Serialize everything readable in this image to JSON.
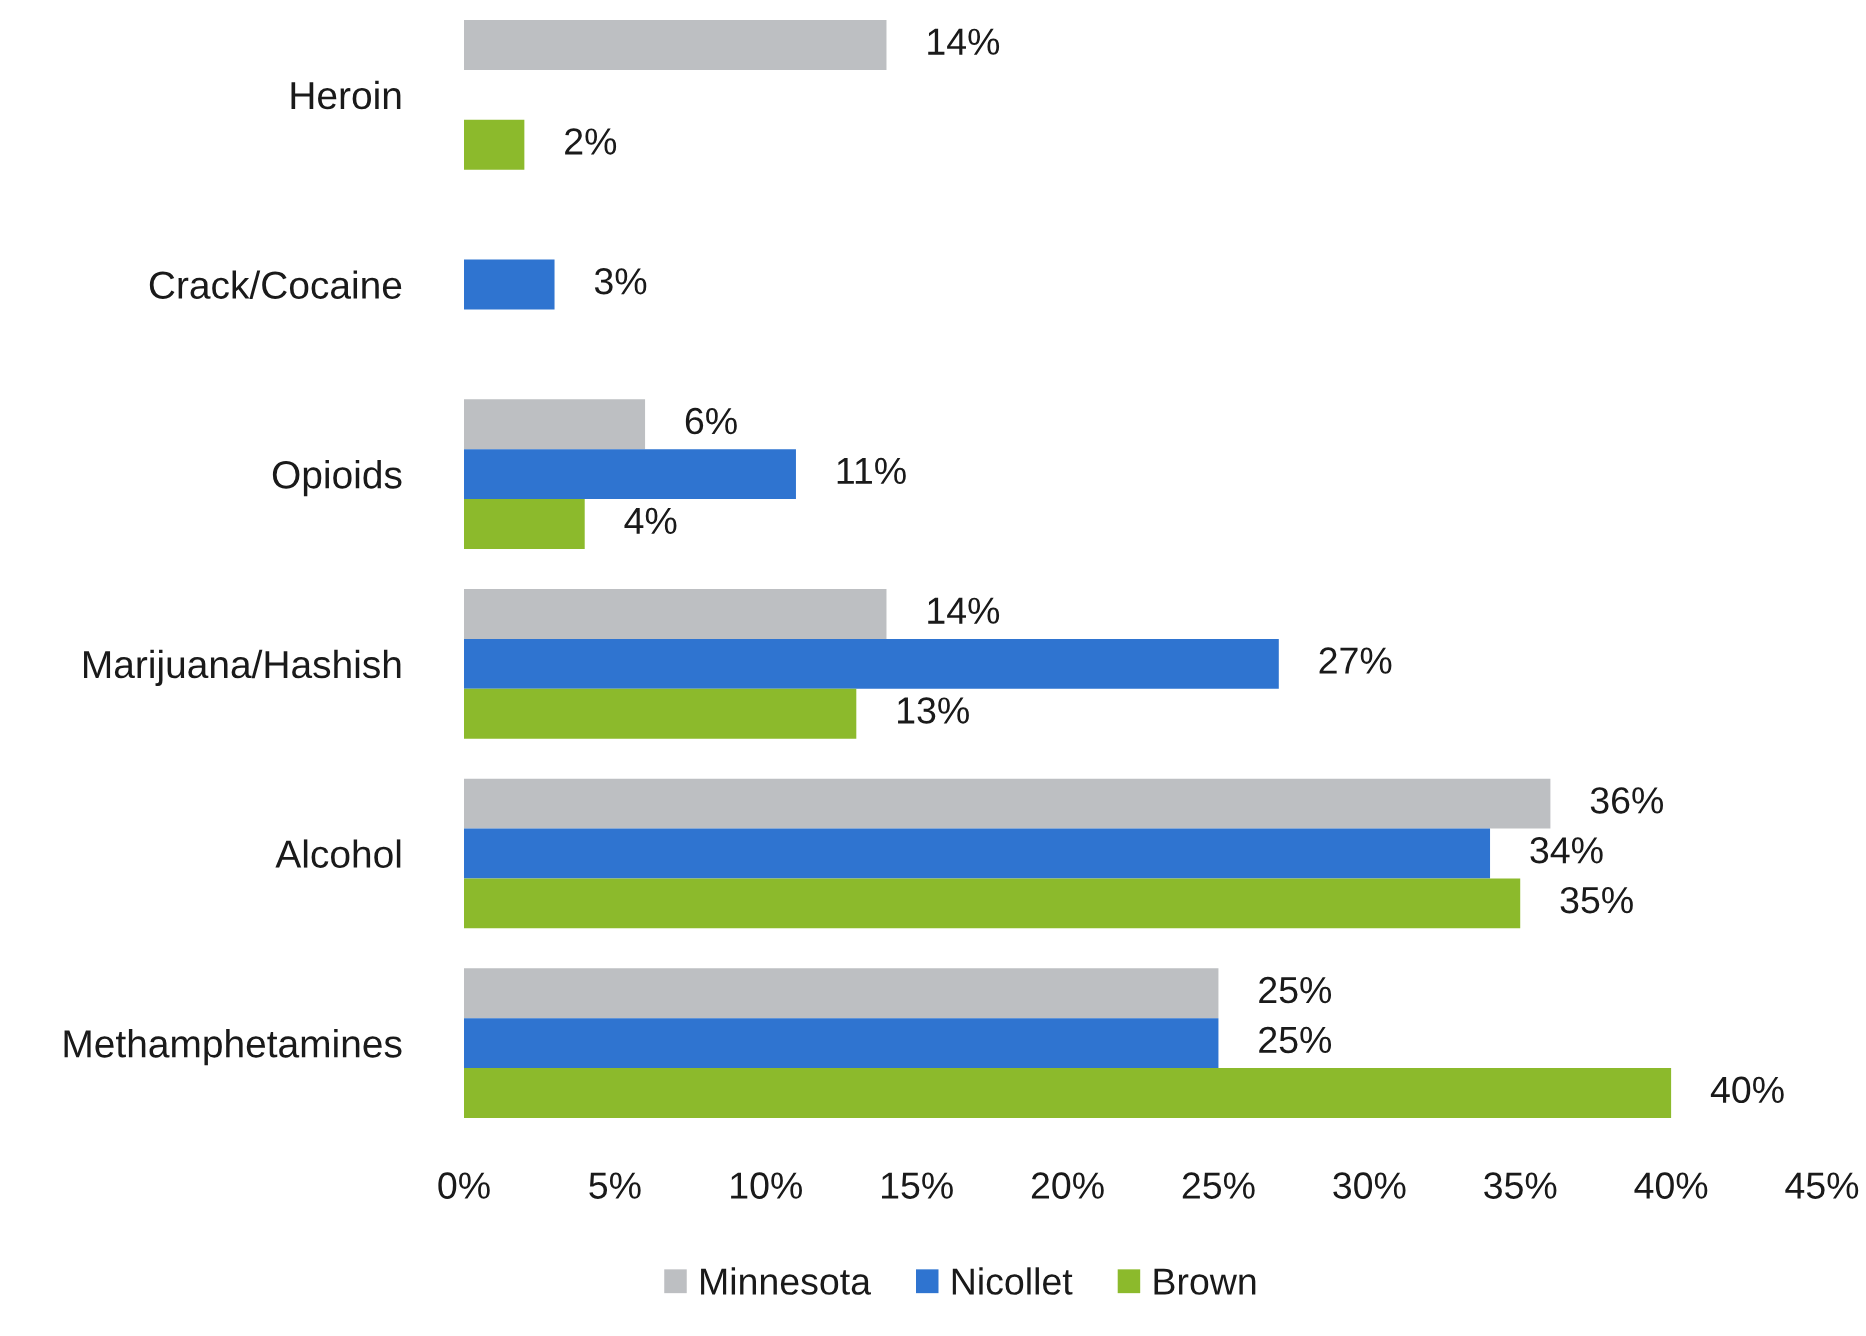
{
  "chart_data": {
    "type": "bar",
    "orientation": "horizontal",
    "categories": [
      "Heroin",
      "Crack/Cocaine",
      "Opioids",
      "Marijuana/Hashish",
      "Alcohol",
      "Methamphetamines"
    ],
    "series": [
      {
        "name": "Minnesota",
        "color": "#bdbfc2",
        "values": [
          14,
          null,
          6,
          14,
          36,
          25
        ],
        "value_labels": [
          "14%",
          null,
          "6%",
          "14%",
          "36%",
          "25%"
        ]
      },
      {
        "name": "Nicollet",
        "color": "#2f74d0",
        "values": [
          null,
          3,
          11,
          27,
          34,
          25
        ],
        "value_labels": [
          null,
          "3%",
          "11%",
          "27%",
          "34%",
          "25%"
        ]
      },
      {
        "name": "Brown",
        "color": "#8cba2c",
        "values": [
          2,
          null,
          4,
          13,
          35,
          40
        ],
        "value_labels": [
          "2%",
          null,
          "4%",
          "13%",
          "35%",
          "40%"
        ]
      }
    ],
    "xlim": [
      0,
      45
    ],
    "xticks": [
      {
        "value": 0,
        "label": "0%"
      },
      {
        "value": 5,
        "label": "5%"
      },
      {
        "value": 10,
        "label": "10%"
      },
      {
        "value": 15,
        "label": "15%"
      },
      {
        "value": 20,
        "label": "20%"
      },
      {
        "value": 25,
        "label": "25%"
      },
      {
        "value": 30,
        "label": "30%"
      },
      {
        "value": 35,
        "label": "35%"
      },
      {
        "value": 40,
        "label": "40%"
      },
      {
        "value": 45,
        "label": "45%"
      }
    ],
    "grid": false,
    "legend": "bottom"
  }
}
